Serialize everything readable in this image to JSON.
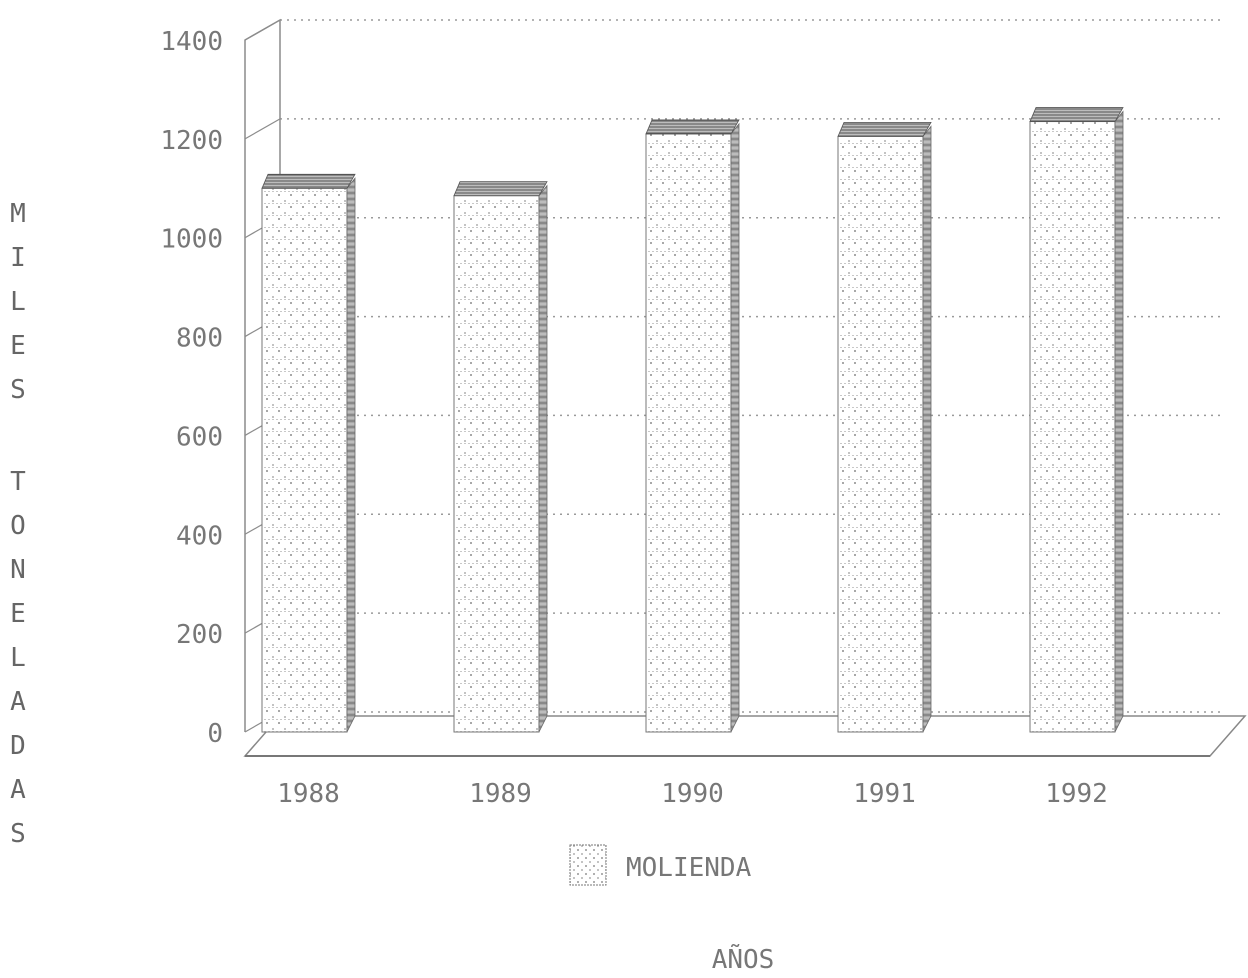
{
  "chart_data": {
    "type": "bar",
    "title": "",
    "xlabel": "AÑOS",
    "ylabel": "MILES TONELADAS",
    "categories": [
      "1988",
      "1989",
      "1990",
      "1991",
      "1992"
    ],
    "series": [
      {
        "name": "MOLIENDA",
        "values": [
          1100,
          1085,
          1210,
          1205,
          1235
        ]
      }
    ],
    "ylim": [
      0,
      1400
    ],
    "yticks": [
      "0",
      "200",
      "400",
      "600",
      "800",
      "1000",
      "1200",
      "1400"
    ],
    "grid": true,
    "legend_position": "bottom-center",
    "style": "3d-bar",
    "colors": {
      "bar_face": "#ffffff",
      "bar_dots": "#9a9a9a",
      "bar_side": "#8a8a8a",
      "grid": "#9a9a9a",
      "axis": "#888888"
    }
  }
}
